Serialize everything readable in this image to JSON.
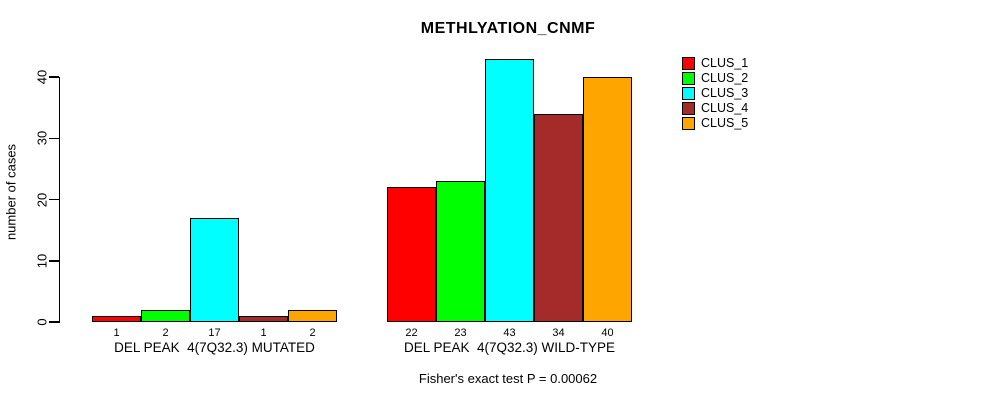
{
  "title": "METHLYATION_CNMF",
  "chart_data": {
    "type": "bar",
    "title": "METHLYATION_CNMF",
    "xlabel": "",
    "ylabel": "number of cases",
    "yticks": [
      0,
      10,
      20,
      30,
      40
    ],
    "ylim": [
      0,
      44
    ],
    "grid": false,
    "legend_position": "right",
    "categories": [
      "DEL PEAK  4(7Q32.3) MUTATED",
      "DEL PEAK  4(7Q32.3) WILD-TYPE"
    ],
    "series": [
      {
        "name": "CLUS_1",
        "color": "#FF0000",
        "values": [
          1,
          22
        ]
      },
      {
        "name": "CLUS_2",
        "color": "#00FF00",
        "values": [
          2,
          23
        ]
      },
      {
        "name": "CLUS_3",
        "color": "#00FFFF",
        "values": [
          17,
          43
        ]
      },
      {
        "name": "CLUS_4",
        "color": "#A52A2A",
        "values": [
          1,
          34
        ]
      },
      {
        "name": "CLUS_5",
        "color": "#FFA500",
        "values": [
          2,
          40
        ]
      }
    ],
    "bar_value_labels": [
      [
        "1",
        "2",
        "17",
        "1",
        "2"
      ],
      [
        "22",
        "23",
        "43",
        "34",
        "40"
      ]
    ],
    "annotation": "Fisher's exact test P = 0.00062"
  }
}
